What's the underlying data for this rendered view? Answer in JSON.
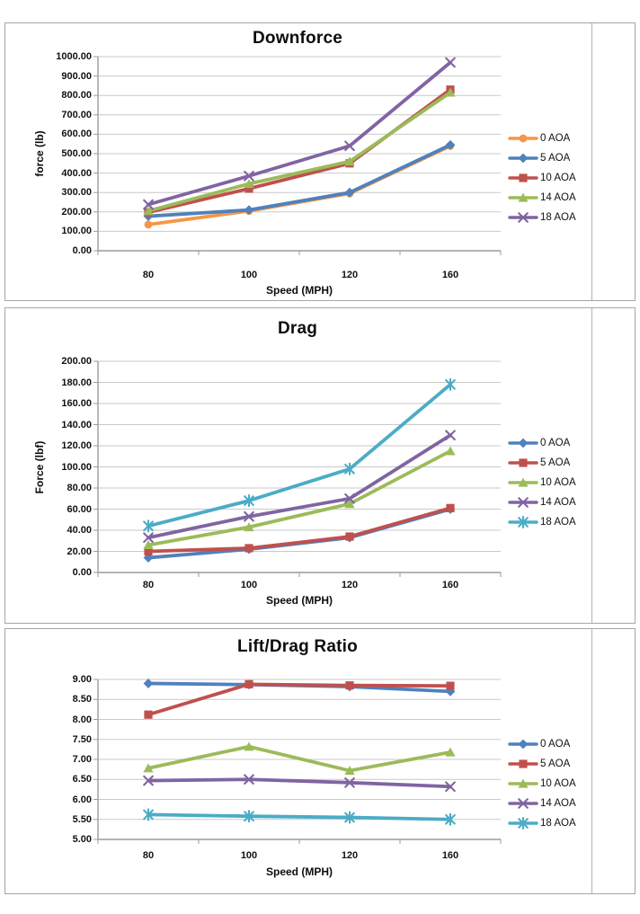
{
  "palette": {
    "grid": "#c9c9c9",
    "axis": "#9b9b9b",
    "panel_border": "#a6a6a6",
    "text": "#111111"
  },
  "chart_data": [
    {
      "type": "line",
      "title": "Downforce",
      "xlabel": "Speed (MPH)",
      "ylabel": "force (lb)",
      "categories": [
        80,
        100,
        120,
        160
      ],
      "x_tick_labels": [
        "80",
        "100",
        "120",
        "160"
      ],
      "ylim": [
        0,
        1000
      ],
      "ytick_step": 100,
      "y_tick_labels": [
        "1000.00",
        "900.00",
        "800.00",
        "700.00",
        "600.00",
        "500.00",
        "400.00",
        "300.00",
        "200.00",
        "100.00",
        "0.00"
      ],
      "grid": true,
      "legend_position": "right",
      "series": [
        {
          "name": "0 AOA",
          "color": "#F79646",
          "marker": "circle",
          "values": [
            135,
            205,
            295,
            540
          ]
        },
        {
          "name": "5 AOA",
          "color": "#4F81BD",
          "marker": "diamond",
          "values": [
            178,
            210,
            300,
            545
          ]
        },
        {
          "name": "10 AOA",
          "color": "#C0504D",
          "marker": "square",
          "values": [
            198,
            320,
            450,
            830
          ]
        },
        {
          "name": "14 AOA",
          "color": "#9BBB59",
          "marker": "triangle",
          "values": [
            205,
            345,
            460,
            815
          ]
        },
        {
          "name": "18 AOA",
          "color": "#8064A2",
          "marker": "x",
          "values": [
            238,
            385,
            540,
            970
          ]
        }
      ]
    },
    {
      "type": "line",
      "title": "Drag",
      "xlabel": "Speed (MPH)",
      "ylabel": "Force (lbf)",
      "categories": [
        80,
        100,
        120,
        160
      ],
      "x_tick_labels": [
        "80",
        "100",
        "120",
        "160"
      ],
      "ylim": [
        0,
        200
      ],
      "ytick_step": 20,
      "y_tick_labels": [
        "200.00",
        "180.00",
        "160.00",
        "140.00",
        "120.00",
        "100.00",
        "80.00",
        "60.00",
        "40.00",
        "20.00",
        "0.00"
      ],
      "grid": true,
      "legend_position": "right",
      "series": [
        {
          "name": "0 AOA",
          "color": "#4F81BD",
          "marker": "diamond",
          "values": [
            14,
            22,
            33,
            60
          ]
        },
        {
          "name": "5 AOA",
          "color": "#C0504D",
          "marker": "square",
          "values": [
            20,
            23,
            34,
            61
          ]
        },
        {
          "name": "10 AOA",
          "color": "#9BBB59",
          "marker": "triangle",
          "values": [
            26,
            43,
            65,
            115
          ]
        },
        {
          "name": "14 AOA",
          "color": "#8064A2",
          "marker": "x",
          "values": [
            33,
            53,
            70,
            130
          ]
        },
        {
          "name": "18 AOA",
          "color": "#4BACC6",
          "marker": "star",
          "values": [
            44,
            68,
            98,
            178
          ]
        }
      ]
    },
    {
      "type": "line",
      "title": "Lift/Drag Ratio",
      "xlabel": "Speed (MPH)",
      "ylabel": "",
      "categories": [
        80,
        100,
        120,
        160
      ],
      "x_tick_labels": [
        "80",
        "100",
        "120",
        "160"
      ],
      "ylim": [
        5,
        9
      ],
      "ytick_step": 0.5,
      "y_tick_labels": [
        "9.00",
        "8.50",
        "8.00",
        "7.50",
        "7.00",
        "6.50",
        "6.00",
        "5.50",
        "5.00"
      ],
      "grid": true,
      "legend_position": "right",
      "series": [
        {
          "name": "0 AOA",
          "color": "#4F81BD",
          "marker": "diamond",
          "values": [
            8.9,
            8.87,
            8.82,
            8.7
          ]
        },
        {
          "name": "5 AOA",
          "color": "#C0504D",
          "marker": "square",
          "values": [
            8.12,
            8.88,
            8.85,
            8.84
          ]
        },
        {
          "name": "10 AOA",
          "color": "#9BBB59",
          "marker": "triangle",
          "values": [
            6.78,
            7.32,
            6.72,
            7.18
          ]
        },
        {
          "name": "14 AOA",
          "color": "#8064A2",
          "marker": "x",
          "values": [
            6.47,
            6.5,
            6.42,
            6.32
          ]
        },
        {
          "name": "18 AOA",
          "color": "#4BACC6",
          "marker": "star",
          "values": [
            5.62,
            5.58,
            5.55,
            5.5
          ]
        }
      ]
    }
  ]
}
